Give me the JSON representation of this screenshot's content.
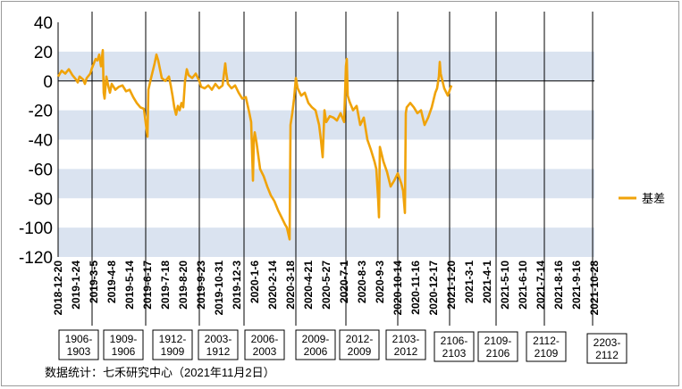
{
  "chart_data": {
    "type": "line",
    "title": "",
    "xlabel": "",
    "ylabel": "",
    "ylim": [
      -120,
      40
    ],
    "yticks": [
      40,
      20,
      0,
      -20,
      -40,
      -60,
      -80,
      -100,
      -120
    ],
    "band_color": "#dae3f0",
    "line_color": "#f0a30a",
    "legend": {
      "position": "right",
      "entries": [
        "基差"
      ]
    },
    "x_tick_labels": [
      "2018-12-20",
      "2019-1-24",
      "2019-3-5",
      "2019-4-8",
      "2019-5-14",
      "2019-6-17",
      "2019-7-18",
      "2019-8-20",
      "2019-9-23",
      "2019-10-31",
      "2019-12-3",
      "2020-1-6",
      "2020-2-14",
      "2020-3-18",
      "2020-4-21",
      "2020-5-27",
      "2020-7-1",
      "2020-8-3",
      "2020-9-3",
      "2020-10-14",
      "2020-11-16",
      "2020-12-17",
      "2021-1-20",
      "2021-3-1",
      "2021-4-1",
      "2021-5-10",
      "2021-6-10",
      "2021-7-14",
      "2021-8-16",
      "2021-9-16",
      "2021-10-28"
    ],
    "contract_labels": [
      {
        "line1": "1906-",
        "line2": "1903"
      },
      {
        "line1": "1909-",
        "line2": "1906"
      },
      {
        "line1": "1912-",
        "line2": "1909"
      },
      {
        "line1": "2003-",
        "line2": "1912"
      },
      {
        "line1": "2006-",
        "line2": "2003"
      },
      {
        "line1": "2009-",
        "line2": "2006"
      },
      {
        "line1": "2012-",
        "line2": "2009"
      },
      {
        "line1": "2103-",
        "line2": "2012"
      },
      {
        "line1": "2106-",
        "line2": "2103"
      },
      {
        "line1": "2109-",
        "line2": "2106"
      },
      {
        "line1": "2112-",
        "line2": "2109"
      },
      {
        "line1": "2203-",
        "line2": "2112"
      }
    ],
    "contract_dividers_after_tick": [
      1.9,
      4.9,
      7.9,
      10.4,
      13.3,
      16.1,
      19.0,
      21.9,
      24.5,
      27.2,
      29.9
    ],
    "series": [
      {
        "name": "基差",
        "points": [
          [
            0.0,
            3
          ],
          [
            0.2,
            7
          ],
          [
            0.4,
            5
          ],
          [
            0.6,
            8
          ],
          [
            0.8,
            4
          ],
          [
            1.0,
            1
          ],
          [
            1.1,
            -1
          ],
          [
            1.2,
            3
          ],
          [
            1.4,
            1
          ],
          [
            1.5,
            -2
          ],
          [
            1.6,
            2
          ],
          [
            1.8,
            5
          ],
          [
            1.9,
            9
          ],
          [
            2.0,
            12
          ],
          [
            2.1,
            15
          ],
          [
            2.2,
            14
          ],
          [
            2.3,
            18
          ],
          [
            2.4,
            10
          ],
          [
            2.5,
            21
          ],
          [
            2.55,
            -8
          ],
          [
            2.6,
            -12
          ],
          [
            2.7,
            3
          ],
          [
            2.8,
            -3
          ],
          [
            2.9,
            -8
          ],
          [
            3.0,
            -2
          ],
          [
            3.2,
            -6
          ],
          [
            3.4,
            -4
          ],
          [
            3.6,
            -3
          ],
          [
            3.8,
            -7
          ],
          [
            4.0,
            -6
          ],
          [
            4.2,
            -11
          ],
          [
            4.4,
            -15
          ],
          [
            4.6,
            -18
          ],
          [
            4.8,
            -19
          ],
          [
            5.0,
            -38
          ],
          [
            5.05,
            -6
          ],
          [
            5.2,
            2
          ],
          [
            5.4,
            12
          ],
          [
            5.5,
            18
          ],
          [
            5.6,
            14
          ],
          [
            5.7,
            8
          ],
          [
            5.8,
            2
          ],
          [
            6.0,
            0
          ],
          [
            6.2,
            3
          ],
          [
            6.3,
            -3
          ],
          [
            6.4,
            -10
          ],
          [
            6.5,
            -18
          ],
          [
            6.6,
            -23
          ],
          [
            6.7,
            -17
          ],
          [
            6.8,
            -20
          ],
          [
            6.9,
            -15
          ],
          [
            7.0,
            -18
          ],
          [
            7.1,
            0
          ],
          [
            7.2,
            8
          ],
          [
            7.3,
            4
          ],
          [
            7.5,
            2
          ],
          [
            7.7,
            5
          ],
          [
            7.9,
            0
          ],
          [
            8.0,
            -4
          ],
          [
            8.2,
            -5
          ],
          [
            8.4,
            -3
          ],
          [
            8.6,
            -6
          ],
          [
            8.8,
            -2
          ],
          [
            9.0,
            -5
          ],
          [
            9.2,
            -3
          ],
          [
            9.35,
            12
          ],
          [
            9.4,
            6
          ],
          [
            9.5,
            -2
          ],
          [
            9.7,
            -5
          ],
          [
            9.9,
            -3
          ],
          [
            10.1,
            -8
          ],
          [
            10.3,
            -12
          ],
          [
            10.5,
            -11
          ],
          [
            10.7,
            -22
          ],
          [
            10.8,
            -28
          ],
          [
            10.9,
            -68
          ],
          [
            10.95,
            -40
          ],
          [
            11.0,
            -35
          ],
          [
            11.1,
            -42
          ],
          [
            11.3,
            -60
          ],
          [
            11.5,
            -65
          ],
          [
            11.7,
            -72
          ],
          [
            11.9,
            -78
          ],
          [
            12.1,
            -82
          ],
          [
            12.3,
            -88
          ],
          [
            12.5,
            -93
          ],
          [
            12.7,
            -98
          ],
          [
            12.8,
            -100
          ],
          [
            12.95,
            -108
          ],
          [
            13.0,
            -30
          ],
          [
            13.1,
            -22
          ],
          [
            13.2,
            -12
          ],
          [
            13.3,
            2
          ],
          [
            13.4,
            -5
          ],
          [
            13.6,
            -10
          ],
          [
            13.8,
            -8
          ],
          [
            14.0,
            -15
          ],
          [
            14.2,
            -18
          ],
          [
            14.4,
            -20
          ],
          [
            14.6,
            -30
          ],
          [
            14.7,
            -40
          ],
          [
            14.8,
            -52
          ],
          [
            14.9,
            -20
          ],
          [
            15.0,
            -28
          ],
          [
            15.2,
            -24
          ],
          [
            15.4,
            -25
          ],
          [
            15.6,
            -27
          ],
          [
            15.8,
            -22
          ],
          [
            16.0,
            -28
          ],
          [
            16.1,
            10
          ],
          [
            16.15,
            15
          ],
          [
            16.2,
            -10
          ],
          [
            16.3,
            -14
          ],
          [
            16.5,
            -20
          ],
          [
            16.7,
            -17
          ],
          [
            16.9,
            -30
          ],
          [
            17.1,
            -25
          ],
          [
            17.3,
            -40
          ],
          [
            17.5,
            -47
          ],
          [
            17.7,
            -55
          ],
          [
            17.8,
            -60
          ],
          [
            17.9,
            -80
          ],
          [
            17.95,
            -93
          ],
          [
            18.0,
            -45
          ],
          [
            18.2,
            -55
          ],
          [
            18.4,
            -62
          ],
          [
            18.6,
            -72
          ],
          [
            18.8,
            -68
          ],
          [
            19.0,
            -63
          ],
          [
            19.2,
            -70
          ],
          [
            19.3,
            -75
          ],
          [
            19.4,
            -90
          ],
          [
            19.45,
            -22
          ],
          [
            19.5,
            -18
          ],
          [
            19.7,
            -15
          ],
          [
            19.9,
            -18
          ],
          [
            20.1,
            -22
          ],
          [
            20.3,
            -20
          ],
          [
            20.5,
            -30
          ],
          [
            20.7,
            -25
          ],
          [
            20.9,
            -18
          ],
          [
            21.1,
            -8
          ],
          [
            21.2,
            -5
          ],
          [
            21.3,
            3
          ],
          [
            21.35,
            13
          ],
          [
            21.4,
            5
          ],
          [
            21.6,
            -5
          ],
          [
            21.8,
            -10
          ],
          [
            22.0,
            -3
          ]
        ]
      }
    ]
  },
  "footer": {
    "source": "数据统计：七禾研究中心（2021年11月2日）"
  }
}
